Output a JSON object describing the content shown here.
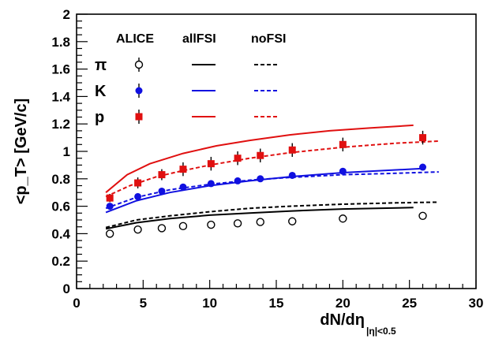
{
  "chart_data": {
    "type": "scatter",
    "xlabel": "dN/dη",
    "xlabel_subscript": "|η|<0.5",
    "ylabel": "<p_T> [GeV/c]",
    "xlim": [
      0,
      30
    ],
    "ylim": [
      0,
      2
    ],
    "x_ticks": [
      "0",
      "5",
      "10",
      "15",
      "20",
      "25",
      "30"
    ],
    "y_ticks": [
      "0",
      "0.2",
      "0.4",
      "0.6",
      "0.8",
      "1",
      "1.2",
      "1.4",
      "1.6",
      "1.8",
      "2"
    ],
    "legend": {
      "headers": [
        "ALICE",
        "allFSI",
        "noFSI"
      ],
      "rows": [
        {
          "label": "π",
          "color": "#000000",
          "marker": "open-circle"
        },
        {
          "label": "K",
          "color": "#1010e0",
          "marker": "filled-circle"
        },
        {
          "label": "p",
          "color": "#e01010",
          "marker": "filled-square"
        }
      ]
    },
    "series": [
      {
        "name": "π",
        "kind": "data",
        "color": "#000000",
        "marker": "open-circle",
        "x": [
          2.5,
          4.6,
          6.4,
          8.0,
          10.1,
          12.1,
          13.8,
          16.2,
          20.0,
          26.0
        ],
        "y": [
          0.4,
          0.43,
          0.44,
          0.455,
          0.465,
          0.475,
          0.485,
          0.49,
          0.51,
          0.53
        ],
        "err": [
          0.01,
          0.01,
          0.01,
          0.01,
          0.01,
          0.01,
          0.01,
          0.01,
          0.01,
          0.01
        ]
      },
      {
        "name": "K",
        "kind": "data",
        "color": "#1010e0",
        "marker": "filled-circle",
        "x": [
          2.5,
          4.6,
          6.4,
          8.0,
          10.1,
          12.1,
          13.8,
          16.2,
          20.0,
          26.0
        ],
        "y": [
          0.6,
          0.67,
          0.71,
          0.74,
          0.765,
          0.785,
          0.8,
          0.825,
          0.855,
          0.885
        ],
        "err": [
          0.02,
          0.02,
          0.02,
          0.02,
          0.02,
          0.02,
          0.02,
          0.02,
          0.02,
          0.02
        ]
      },
      {
        "name": "p",
        "kind": "data",
        "color": "#e01010",
        "marker": "filled-square",
        "x": [
          2.5,
          4.6,
          6.4,
          8.0,
          10.1,
          12.1,
          13.8,
          16.2,
          20.0,
          26.0
        ],
        "y": [
          0.66,
          0.77,
          0.83,
          0.87,
          0.91,
          0.95,
          0.97,
          1.01,
          1.05,
          1.1
        ],
        "err": [
          0.03,
          0.04,
          0.04,
          0.05,
          0.05,
          0.05,
          0.05,
          0.05,
          0.05,
          0.05
        ]
      },
      {
        "name": "π",
        "kind": "allFSI",
        "color": "#000000",
        "dash": false,
        "x": [
          2.2,
          4.5,
          7,
          10,
          13,
          16,
          20,
          25.3
        ],
        "y": [
          0.435,
          0.48,
          0.51,
          0.535,
          0.55,
          0.565,
          0.58,
          0.59
        ]
      },
      {
        "name": "π",
        "kind": "noFSI",
        "color": "#000000",
        "dash": true,
        "x": [
          2.2,
          4.5,
          7,
          10,
          13,
          16,
          20,
          24,
          27.2
        ],
        "y": [
          0.445,
          0.5,
          0.53,
          0.56,
          0.585,
          0.6,
          0.615,
          0.625,
          0.63
        ]
      },
      {
        "name": "K",
        "kind": "allFSI",
        "color": "#1010e0",
        "dash": false,
        "x": [
          2.2,
          4.5,
          7,
          10,
          13,
          16,
          20,
          26.0
        ],
        "y": [
          0.555,
          0.64,
          0.7,
          0.75,
          0.785,
          0.815,
          0.845,
          0.875
        ]
      },
      {
        "name": "K",
        "kind": "noFSI",
        "color": "#1010e0",
        "dash": true,
        "x": [
          2.2,
          4.5,
          7,
          10,
          13,
          16,
          20,
          24,
          27.2
        ],
        "y": [
          0.585,
          0.665,
          0.72,
          0.76,
          0.79,
          0.81,
          0.83,
          0.84,
          0.85
        ]
      },
      {
        "name": "p",
        "kind": "allFSI",
        "color": "#e01010",
        "dash": false,
        "x": [
          2.2,
          3.8,
          5.5,
          8,
          10.5,
          13,
          16,
          19,
          22,
          25.3
        ],
        "y": [
          0.7,
          0.83,
          0.91,
          0.985,
          1.04,
          1.08,
          1.12,
          1.15,
          1.17,
          1.19
        ]
      },
      {
        "name": "p",
        "kind": "noFSI",
        "color": "#e01010",
        "dash": true,
        "x": [
          2.2,
          4.0,
          6,
          8,
          10,
          13,
          16,
          20,
          24,
          27.2
        ],
        "y": [
          0.67,
          0.75,
          0.815,
          0.86,
          0.9,
          0.95,
          0.99,
          1.03,
          1.06,
          1.075
        ]
      }
    ]
  }
}
